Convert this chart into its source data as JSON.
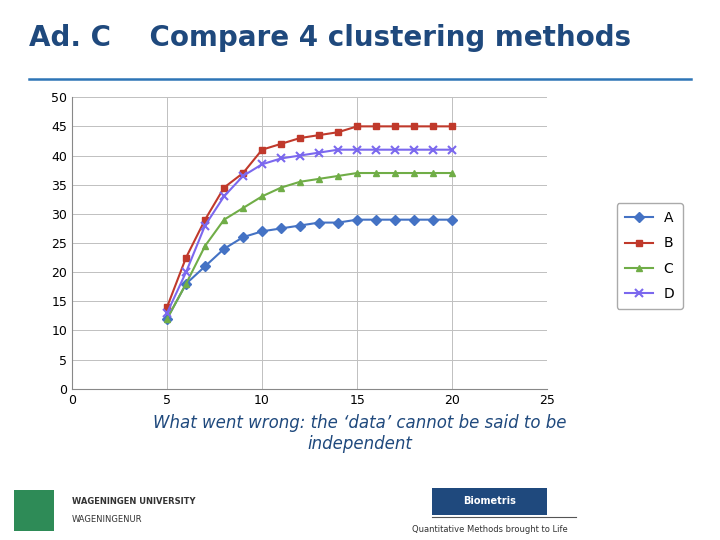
{
  "title": "Ad. C    Compare 4 clustering methods",
  "subtitle_text": "What went wrong: the ‘data’ cannot be said to be\nindependent",
  "footer_left_line1": "WAGENINGEN UNIVERSITY",
  "footer_left_line2": "WAGENINGENUR",
  "footer_right_box": "Biometris",
  "footer_right_text": "Quantitative Methods brought to Life",
  "x": [
    5,
    6,
    7,
    8,
    9,
    10,
    11,
    12,
    13,
    14,
    15,
    16,
    17,
    18,
    19,
    20
  ],
  "A": [
    12,
    18,
    21,
    24,
    26,
    27,
    27.5,
    28,
    28.5,
    28.5,
    29,
    29,
    29,
    29,
    29,
    29
  ],
  "B": [
    14,
    22.5,
    29,
    34.5,
    37,
    41,
    42,
    43,
    43.5,
    44,
    45,
    45,
    45,
    45,
    45,
    45
  ],
  "C": [
    12,
    18,
    24.5,
    29,
    31,
    33,
    34.5,
    35.5,
    36,
    36.5,
    37,
    37,
    37,
    37,
    37,
    37
  ],
  "D": [
    13,
    20,
    28,
    33,
    36.5,
    38.5,
    39.5,
    40,
    40.5,
    41,
    41,
    41,
    41,
    41,
    41,
    41
  ],
  "color_A": "#4472C4",
  "color_B": "#C0392B",
  "color_C": "#70AD47",
  "color_D": "#7B68EE",
  "title_color": "#1F497D",
  "subtitle_color": "#1F497D",
  "bg_color": "#FFFFFF",
  "plot_bg": "#FFFFFF",
  "grid_color": "#C0C0C0",
  "xlim": [
    0,
    25
  ],
  "ylim": [
    0,
    50
  ],
  "xticks": [
    0,
    5,
    10,
    15,
    20,
    25
  ],
  "yticks": [
    0,
    5,
    10,
    15,
    20,
    25,
    30,
    35,
    40,
    45,
    50
  ]
}
